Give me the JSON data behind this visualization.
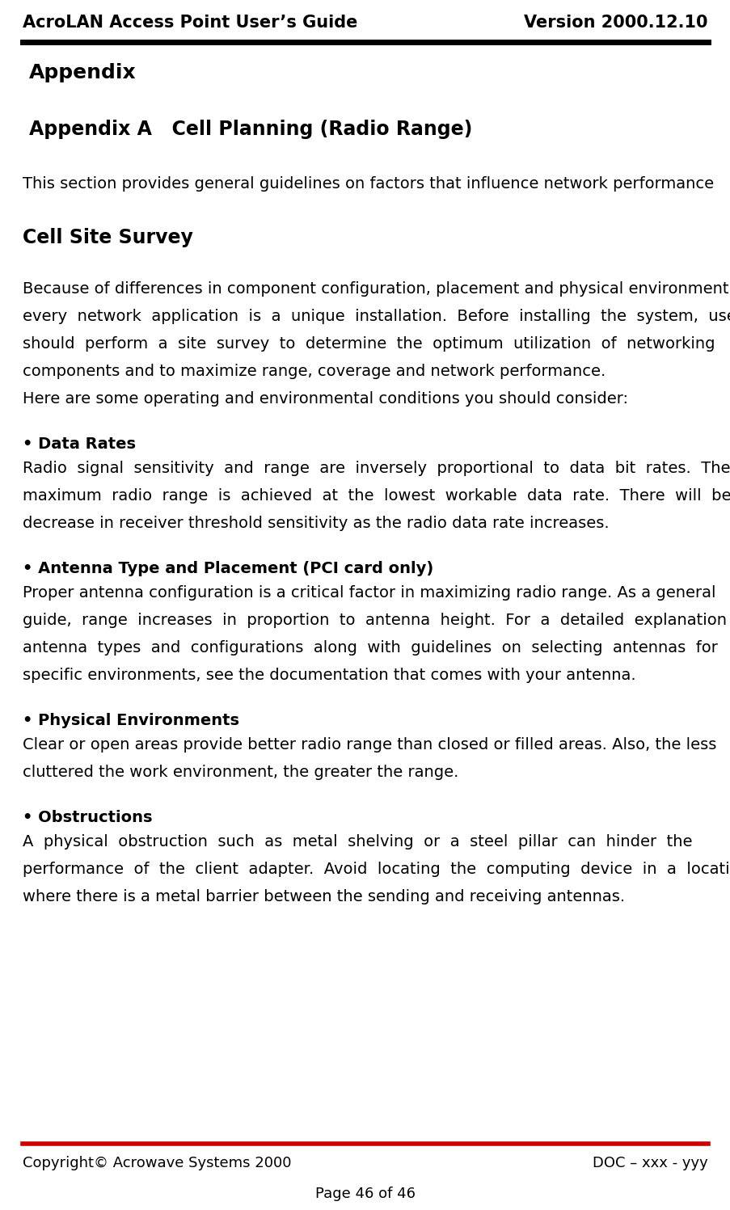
{
  "header_left": "AcroLAN Access Point User’s Guide",
  "header_right": "Version 2000.12.10",
  "footer_left": "Copyright© Acrowave Systems 2000",
  "footer_right": "DOC – xxx - yyy",
  "footer_center": "Page 46 of 46",
  "header_line_color": "#000000",
  "footer_line_color": "#cc0000",
  "bg_color": "#ffffff",
  "title1": "Appendix",
  "title2": "Appendix A   Cell Planning (Radio Range)",
  "intro": "This section provides general guidelines on factors that influence network performance",
  "section1_title": "Cell Site Survey",
  "bullet1_title": "• Data Rates",
  "bullet2_title": "• Antenna Type and Placement (PCI card only)",
  "bullet3_title": "• Physical Environments",
  "bullet4_title": "• Obstructions",
  "header_fontsize": 15,
  "title1_fontsize": 18,
  "title2_fontsize": 17,
  "section_fontsize": 17,
  "body_fontsize": 14,
  "bullet_title_fontsize": 14,
  "footer_fontsize": 13
}
